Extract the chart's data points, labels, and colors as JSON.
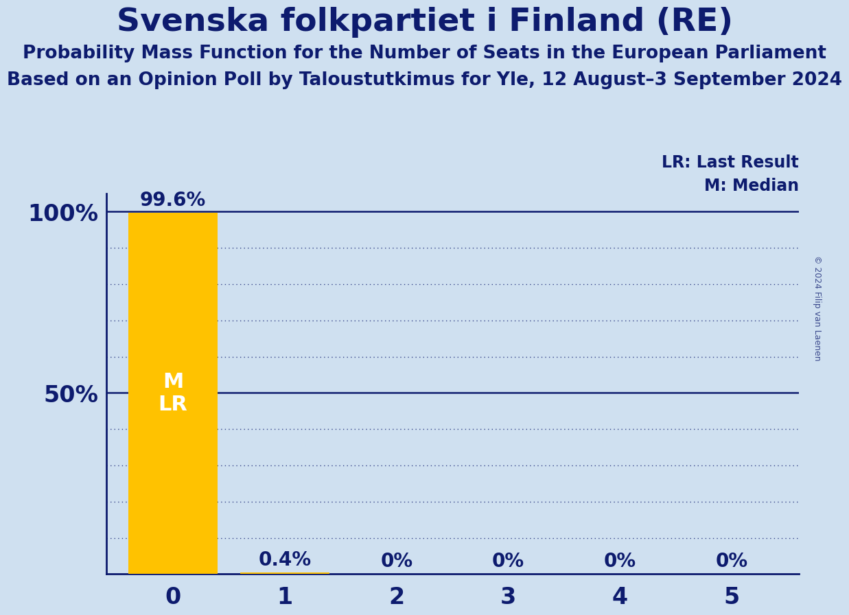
{
  "title": "Svenska folkpartiet i Finland (RE)",
  "subtitle1": "Probability Mass Function for the Number of Seats in the European Parliament",
  "subtitle2": "Based on an Opinion Poll by Taloustutkimus for Yle, 12 August–3 September 2024",
  "copyright": "© 2024 Filip van Laenen",
  "categories": [
    0,
    1,
    2,
    3,
    4,
    5
  ],
  "values": [
    99.6,
    0.4,
    0.0,
    0.0,
    0.0,
    0.0
  ],
  "bar_color": "#FFC200",
  "background_color": "#cfe0f0",
  "title_color": "#0d1b6e",
  "bar_label_color_above": "#0d1b6e",
  "bar_label_color_inside": "#ffffff",
  "median": 0,
  "last_result": 0,
  "ylim_max": 105,
  "legend_lr": "LR: Last Result",
  "legend_m": "M: Median",
  "title_fontsize": 34,
  "subtitle_fontsize": 19,
  "bar_label_fontsize": 20,
  "axis_tick_fontsize": 24,
  "legend_fontsize": 17,
  "inside_label_fontsize": 22,
  "copyright_fontsize": 9
}
